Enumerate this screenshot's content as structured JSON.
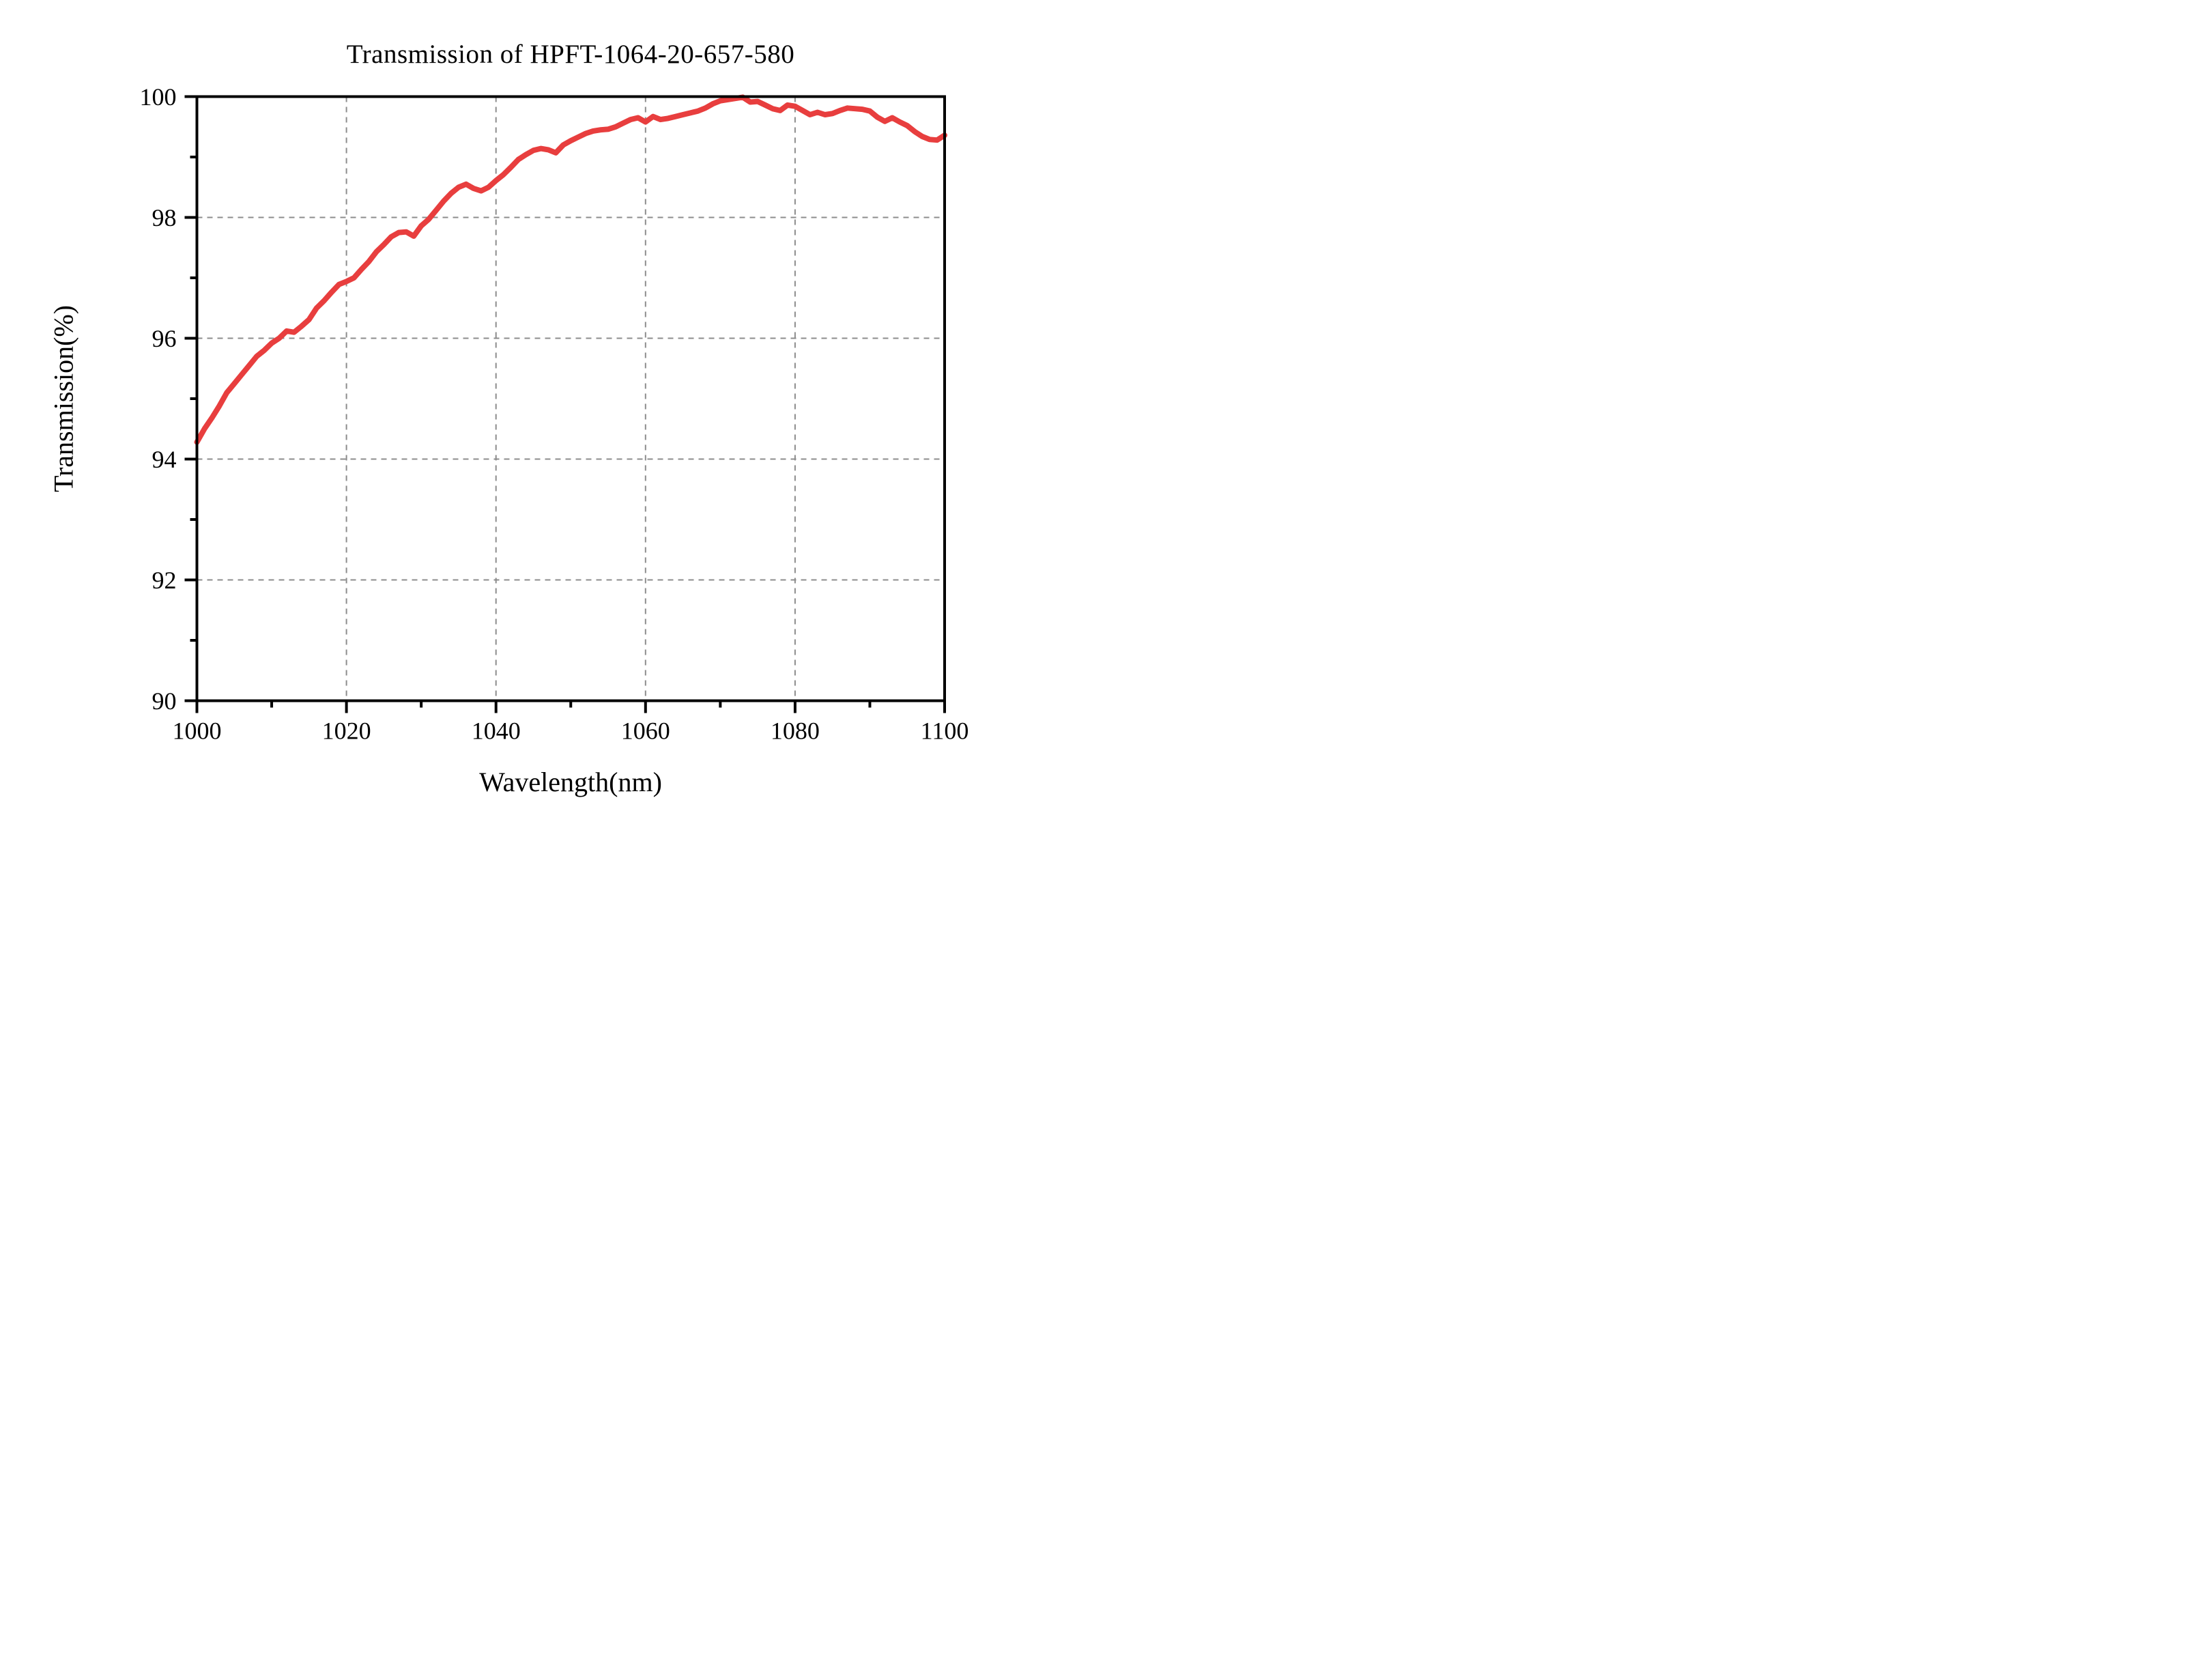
{
  "colors": {
    "curve": "#e83e3e",
    "grid": "#8c8c8c",
    "axis": "#000000",
    "background": "#ffffff"
  },
  "chart_data": {
    "type": "line",
    "title": "Transmission of HPFT-1064-20-657-580",
    "xlabel": "Wavelength(nm)",
    "ylabel": "Transmission(%)",
    "xlim": [
      1000,
      1100
    ],
    "ylim": [
      90,
      100
    ],
    "x_major_ticks": [
      1000,
      1020,
      1040,
      1060,
      1080,
      1100
    ],
    "x_minor_ticks": [
      1010,
      1030,
      1050,
      1070,
      1090
    ],
    "y_major_ticks": [
      90,
      92,
      94,
      96,
      98,
      100
    ],
    "y_minor_ticks": [
      91,
      93,
      95,
      97,
      99
    ],
    "grid": "dashed gray lines at interior major ticks, full plot box, outward ticks",
    "legend": "none",
    "series": [
      {
        "name": "Transmission",
        "color": "#e83e3e",
        "points": [
          [
            1000,
            94.28
          ],
          [
            1001,
            94.5
          ],
          [
            1002,
            94.68
          ],
          [
            1003,
            94.88
          ],
          [
            1004,
            95.1
          ],
          [
            1005,
            95.25
          ],
          [
            1006,
            95.4
          ],
          [
            1007,
            95.55
          ],
          [
            1008,
            95.7
          ],
          [
            1009,
            95.8
          ],
          [
            1010,
            95.92
          ],
          [
            1011,
            96.0
          ],
          [
            1012,
            96.12
          ],
          [
            1013,
            96.1
          ],
          [
            1014,
            96.2
          ],
          [
            1015,
            96.31
          ],
          [
            1016,
            96.5
          ],
          [
            1017,
            96.62
          ],
          [
            1018,
            96.76
          ],
          [
            1019,
            96.89
          ],
          [
            1020,
            96.94
          ],
          [
            1021,
            97.0
          ],
          [
            1022,
            97.14
          ],
          [
            1023,
            97.27
          ],
          [
            1024,
            97.43
          ],
          [
            1025,
            97.55
          ],
          [
            1026,
            97.68
          ],
          [
            1027,
            97.75
          ],
          [
            1028,
            97.76
          ],
          [
            1029,
            97.69
          ],
          [
            1030,
            97.86
          ],
          [
            1031,
            97.97
          ],
          [
            1032,
            98.12
          ],
          [
            1033,
            98.27
          ],
          [
            1034,
            98.4
          ],
          [
            1035,
            98.5
          ],
          [
            1036,
            98.55
          ],
          [
            1037,
            98.48
          ],
          [
            1038,
            98.44
          ],
          [
            1039,
            98.5
          ],
          [
            1040,
            98.61
          ],
          [
            1041,
            98.71
          ],
          [
            1042,
            98.83
          ],
          [
            1043,
            98.96
          ],
          [
            1044,
            99.04
          ],
          [
            1045,
            99.11
          ],
          [
            1046,
            99.14
          ],
          [
            1047,
            99.12
          ],
          [
            1048,
            99.07
          ],
          [
            1049,
            99.2
          ],
          [
            1050,
            99.27
          ],
          [
            1051,
            99.33
          ],
          [
            1052,
            99.39
          ],
          [
            1053,
            99.43
          ],
          [
            1054,
            99.45
          ],
          [
            1055,
            99.46
          ],
          [
            1056,
            99.5
          ],
          [
            1057,
            99.56
          ],
          [
            1058,
            99.62
          ],
          [
            1059,
            99.65
          ],
          [
            1060,
            99.58
          ],
          [
            1061,
            99.67
          ],
          [
            1062,
            99.62
          ],
          [
            1063,
            99.64
          ],
          [
            1064,
            99.67
          ],
          [
            1065,
            99.7
          ],
          [
            1066,
            99.73
          ],
          [
            1067,
            99.76
          ],
          [
            1068,
            99.81
          ],
          [
            1069,
            99.88
          ],
          [
            1070,
            99.93
          ],
          [
            1071,
            99.95
          ],
          [
            1072,
            99.97
          ],
          [
            1073,
            99.99
          ],
          [
            1074,
            99.91
          ],
          [
            1075,
            99.92
          ],
          [
            1076,
            99.86
          ],
          [
            1077,
            99.8
          ],
          [
            1078,
            99.77
          ],
          [
            1079,
            99.86
          ],
          [
            1080,
            99.84
          ],
          [
            1081,
            99.77
          ],
          [
            1082,
            99.7
          ],
          [
            1083,
            99.74
          ],
          [
            1084,
            99.7
          ],
          [
            1085,
            99.72
          ],
          [
            1086,
            99.77
          ],
          [
            1087,
            99.81
          ],
          [
            1088,
            99.8
          ],
          [
            1089,
            99.79
          ],
          [
            1090,
            99.76
          ],
          [
            1091,
            99.66
          ],
          [
            1092,
            99.59
          ],
          [
            1093,
            99.65
          ],
          [
            1094,
            99.58
          ],
          [
            1095,
            99.52
          ],
          [
            1096,
            99.42
          ],
          [
            1097,
            99.34
          ],
          [
            1098,
            99.29
          ],
          [
            1099,
            99.28
          ],
          [
            1100,
            99.36
          ]
        ]
      }
    ]
  }
}
